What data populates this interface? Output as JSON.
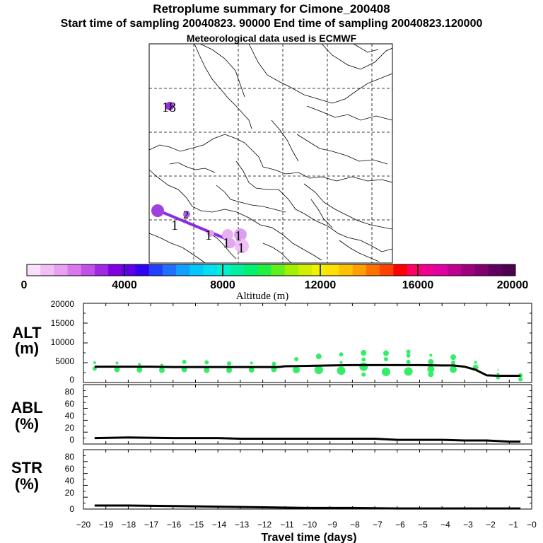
{
  "header": {
    "title": "Retroplume summary for Cimone_200408",
    "sampling_line": "Start time of sampling 20040823. 90000     End time of sampling 20040823.120000",
    "met_line": "Meteorological data used is ECMWF"
  },
  "colors": {
    "alt_points": "#33ee66",
    "line": "#000000",
    "trajectory": "#8a2be2"
  },
  "chart_data": [
    {
      "type": "map",
      "name": "retroplume-map",
      "map_labels": [
        {
          "text": "18",
          "color": "#8a2be2"
        },
        {
          "text": "2",
          "color": "#8a2be2"
        },
        {
          "text": "1",
          "color": "#000000"
        },
        {
          "text": "1",
          "color": "#000000"
        },
        {
          "text": "1",
          "color": "#000000"
        },
        {
          "text": "1",
          "color": "#000000"
        },
        {
          "text": "1",
          "color": "#000000"
        }
      ],
      "colorbar": {
        "label": "Altitude (m)",
        "tick_labels": [
          "0",
          "4000",
          "8000",
          "12000",
          "16000",
          "20000"
        ],
        "range": [
          0,
          20000
        ]
      }
    },
    {
      "type": "scatter",
      "name": "ALT",
      "ylabel_line1": "ALT",
      "ylabel_line2": "(m)",
      "ylim": [
        0,
        20000
      ],
      "yticks": [
        "0",
        "5000",
        "10000",
        "15000",
        "20000"
      ],
      "xlim": [
        -20,
        0
      ],
      "mean_line": {
        "x": [
          -19.5,
          -19,
          -18,
          -17,
          -16,
          -15,
          -14,
          -13,
          -12,
          -11.3,
          -11,
          -10,
          -9,
          -8,
          -7,
          -6,
          -5,
          -4,
          -3.5,
          -3,
          -2.5,
          -2,
          -1.5,
          -1,
          -0.5
        ],
        "y": [
          4000,
          4000,
          4000,
          4000,
          3900,
          3900,
          3900,
          3900,
          3900,
          3900,
          4100,
          4200,
          4300,
          4400,
          4400,
          4400,
          4400,
          4300,
          4300,
          4000,
          3200,
          1800,
          1700,
          1700,
          1700
        ]
      },
      "points": [
        {
          "x": -19.5,
          "y": 3500,
          "s": 3
        },
        {
          "x": -19.5,
          "y": 5000,
          "s": 2
        },
        {
          "x": -18.5,
          "y": 3300,
          "s": 4
        },
        {
          "x": -18.5,
          "y": 4900,
          "s": 2
        },
        {
          "x": -17.5,
          "y": 3200,
          "s": 4
        },
        {
          "x": -17.5,
          "y": 4600,
          "s": 2
        },
        {
          "x": -16.5,
          "y": 3100,
          "s": 4
        },
        {
          "x": -16.5,
          "y": 4400,
          "s": 2
        },
        {
          "x": -15.5,
          "y": 3300,
          "s": 4
        },
        {
          "x": -15.5,
          "y": 5200,
          "s": 3
        },
        {
          "x": -14.5,
          "y": 3100,
          "s": 4
        },
        {
          "x": -14.5,
          "y": 5100,
          "s": 3
        },
        {
          "x": -13.5,
          "y": 3100,
          "s": 4
        },
        {
          "x": -13.5,
          "y": 4800,
          "s": 3
        },
        {
          "x": -12.5,
          "y": 3200,
          "s": 4
        },
        {
          "x": -12.5,
          "y": 4900,
          "s": 2
        },
        {
          "x": -11.5,
          "y": 3300,
          "s": 4
        },
        {
          "x": -11.5,
          "y": 4700,
          "s": 3
        },
        {
          "x": -10.5,
          "y": 3200,
          "s": 5
        },
        {
          "x": -10.5,
          "y": 5900,
          "s": 3
        },
        {
          "x": -9.5,
          "y": 3200,
          "s": 6
        },
        {
          "x": -9.5,
          "y": 6600,
          "s": 4
        },
        {
          "x": -8.5,
          "y": 3000,
          "s": 6
        },
        {
          "x": -8.5,
          "y": 5100,
          "s": 2
        },
        {
          "x": -8.5,
          "y": 7100,
          "s": 3
        },
        {
          "x": -7.5,
          "y": 2000,
          "s": 3
        },
        {
          "x": -7.5,
          "y": 4000,
          "s": 6
        },
        {
          "x": -7.5,
          "y": 5800,
          "s": 3
        },
        {
          "x": -7.5,
          "y": 7500,
          "s": 4
        },
        {
          "x": -6.5,
          "y": 2700,
          "s": 6
        },
        {
          "x": -6.5,
          "y": 5900,
          "s": 3
        },
        {
          "x": -6.5,
          "y": 7400,
          "s": 4
        },
        {
          "x": -5.5,
          "y": 2800,
          "s": 6
        },
        {
          "x": -5.5,
          "y": 5200,
          "s": 3
        },
        {
          "x": -5.5,
          "y": 6800,
          "s": 3
        },
        {
          "x": -5.5,
          "y": 7800,
          "s": 3
        },
        {
          "x": -4.5,
          "y": 2100,
          "s": 4
        },
        {
          "x": -4.5,
          "y": 3400,
          "s": 5
        },
        {
          "x": -4.5,
          "y": 5200,
          "s": 4
        },
        {
          "x": -4.5,
          "y": 6900,
          "s": 2
        },
        {
          "x": -3.5,
          "y": 3300,
          "s": 5
        },
        {
          "x": -3.5,
          "y": 5000,
          "s": 3
        },
        {
          "x": -3.5,
          "y": 6400,
          "s": 4
        },
        {
          "x": -2.5,
          "y": 3800,
          "s": 4
        },
        {
          "x": -2.5,
          "y": 5100,
          "s": 2
        },
        {
          "x": -1.5,
          "y": 1300,
          "s": 3
        },
        {
          "x": -1.5,
          "y": 2100,
          "s": 2
        },
        {
          "x": -1.5,
          "y": 3200,
          "s": 1
        },
        {
          "x": -0.5,
          "y": 800,
          "s": 3
        },
        {
          "x": -0.5,
          "y": 1800,
          "s": 3
        }
      ]
    },
    {
      "type": "line",
      "name": "ABL",
      "ylabel_line1": "ABL",
      "ylabel_line2": "(%)",
      "ylim": [
        0,
        100
      ],
      "yticks": [
        "0",
        "20",
        "40",
        "60",
        "80"
      ],
      "x": [
        -19.5,
        -18,
        -16,
        -14,
        -13,
        -12,
        -10,
        -8,
        -7,
        -6,
        -5,
        -4,
        -3,
        -2,
        -1,
        -0.5
      ],
      "y": [
        10,
        11,
        10,
        10,
        9,
        9,
        9,
        9,
        9,
        7,
        7,
        7,
        6,
        6,
        4,
        4
      ]
    },
    {
      "type": "line",
      "name": "STR",
      "ylabel_line1": "STR",
      "ylabel_line2": "(%)",
      "ylim": [
        0,
        100
      ],
      "yticks": [
        "0",
        "20",
        "40",
        "60",
        "80"
      ],
      "xlabel": "Travel time (days)",
      "xticks": [
        "−20",
        "−19",
        "−18",
        "−17",
        "−16",
        "−15",
        "−14",
        "−13",
        "−12",
        "−11",
        "−10",
        "−9",
        "−8",
        "−7",
        "−6",
        "−5",
        "−4",
        "−3",
        "−2",
        "−1",
        "−0"
      ],
      "x": [
        -19.5,
        -18,
        -16,
        -14,
        -12,
        -10,
        -8,
        -6,
        -4,
        -2,
        -1,
        -0.5
      ],
      "y": [
        6,
        6,
        5,
        4,
        3,
        2,
        2,
        1,
        1,
        1,
        1,
        1
      ]
    }
  ]
}
